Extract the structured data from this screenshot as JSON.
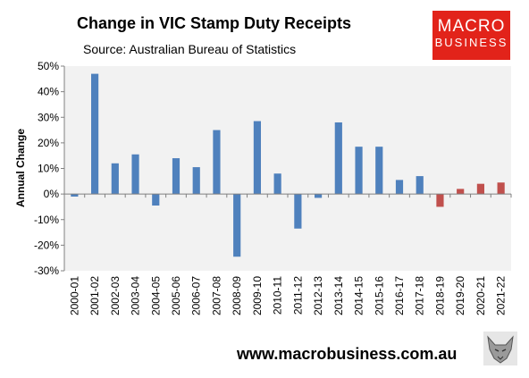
{
  "header": {
    "title": "Change in VIC Stamp Duty Receipts",
    "subtitle": "Source: Australian Bureau of Statistics"
  },
  "logo": {
    "line1": "MACRO",
    "line2": "BUSINESS"
  },
  "footer": {
    "url": "www.macrobusiness.com.au"
  },
  "colors": {
    "historic": "#4f81bd",
    "forecast": "#c0504d",
    "plot_bg": "#f2f2f2",
    "logo_bg": "#e2231a"
  },
  "chart_data": {
    "type": "bar",
    "title": "Change in VIC Stamp Duty Receipts",
    "subtitle": "Source: Australian Bureau of Statistics",
    "xlabel": "",
    "ylabel": "Annual Change",
    "ylim": [
      -30,
      50
    ],
    "yticks": [
      50,
      40,
      30,
      20,
      10,
      0,
      -10,
      -20,
      -30
    ],
    "ytick_labels": [
      "50%",
      "40%",
      "30%",
      "20%",
      "10%",
      "0%",
      "-10%",
      "-20%",
      "-30%"
    ],
    "grid": false,
    "legend": "none",
    "categories": [
      "2000-01",
      "2001-02",
      "2002-03",
      "2003-04",
      "2004-05",
      "2005-06",
      "2006-07",
      "2007-08",
      "2008-09",
      "2009-10",
      "2010-11",
      "2011-12",
      "2012-13",
      "2013-14",
      "2014-15",
      "2015-16",
      "2016-17",
      "2017-18",
      "2018-19",
      "2019-20",
      "2020-21",
      "2021-22"
    ],
    "values": [
      -1,
      47,
      12,
      15.5,
      -4.5,
      14,
      10.5,
      25,
      -24.5,
      28.5,
      8,
      -13.5,
      -1.5,
      28,
      18.5,
      18.5,
      5.5,
      7,
      -5,
      2,
      4,
      4.5
    ],
    "bar_colors": [
      "#4f81bd",
      "#4f81bd",
      "#4f81bd",
      "#4f81bd",
      "#4f81bd",
      "#4f81bd",
      "#4f81bd",
      "#4f81bd",
      "#4f81bd",
      "#4f81bd",
      "#4f81bd",
      "#4f81bd",
      "#4f81bd",
      "#4f81bd",
      "#4f81bd",
      "#4f81bd",
      "#4f81bd",
      "#4f81bd",
      "#c0504d",
      "#c0504d",
      "#c0504d",
      "#c0504d"
    ]
  }
}
